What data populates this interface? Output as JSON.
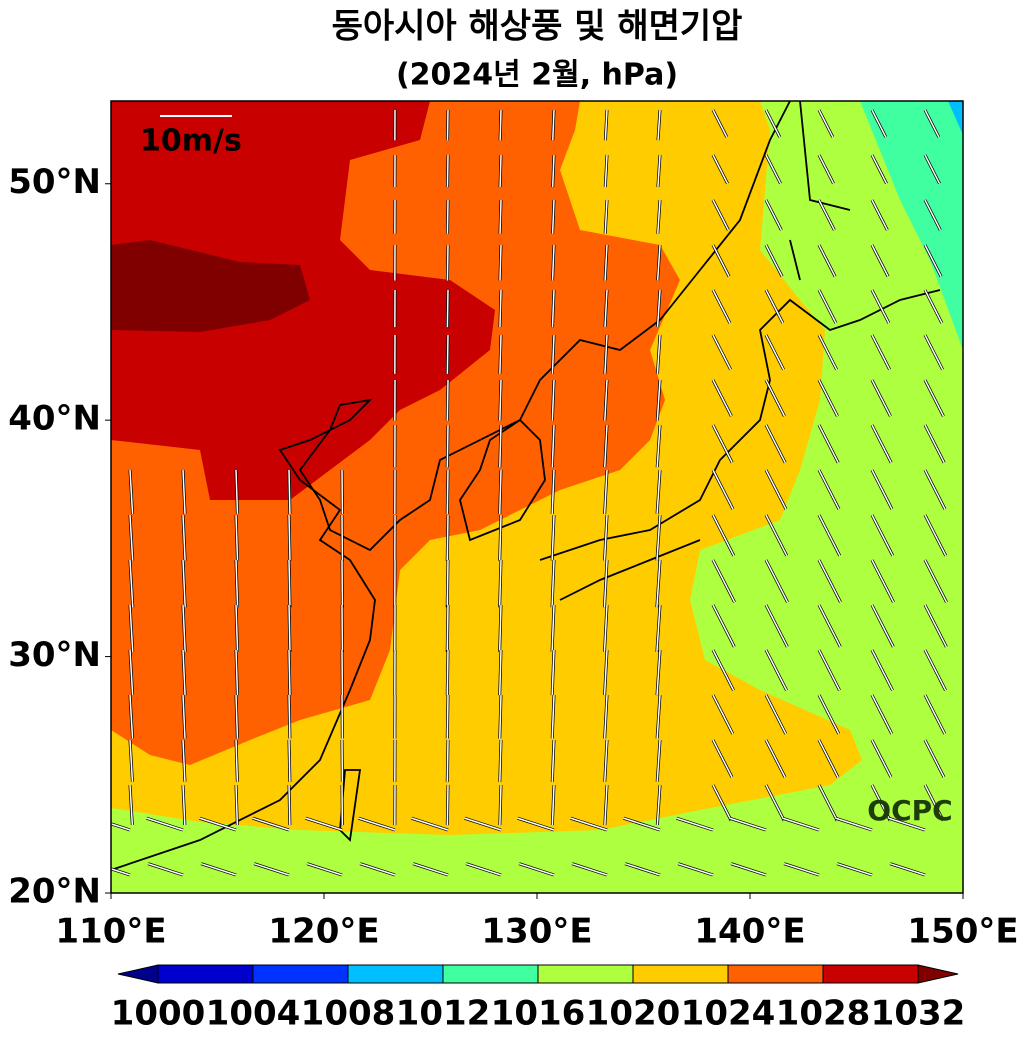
{
  "title": "동아시아 해상풍 및 해면기압",
  "subtitle": "(2024년 2월, hPa)",
  "scale_label": "10m/s",
  "watermark": "OCPC",
  "map": {
    "lon_range": [
      110,
      150
    ],
    "lat_range": [
      20,
      53.5
    ],
    "lon_ticks": [
      {
        "value": 110,
        "label": "110°E"
      },
      {
        "value": 120,
        "label": "120°E"
      },
      {
        "value": 130,
        "label": "130°E"
      },
      {
        "value": 140,
        "label": "140°E"
      },
      {
        "value": 150,
        "label": "150°E"
      }
    ],
    "lat_ticks": [
      {
        "value": 20,
        "label": "20°N"
      },
      {
        "value": 30,
        "label": "30°N"
      },
      {
        "value": 40,
        "label": "40°N"
      },
      {
        "value": 50,
        "label": "50°N"
      }
    ]
  },
  "colorbar": {
    "levels": [
      1000,
      1004,
      1008,
      1012,
      1016,
      1020,
      1024,
      1028,
      1032
    ],
    "colors": [
      "#00008b",
      "#0000cd",
      "#0033ff",
      "#00bfff",
      "#40ffa0",
      "#adff40",
      "#ffcc00",
      "#ff6000",
      "#c80000",
      "#800000"
    ]
  }
}
